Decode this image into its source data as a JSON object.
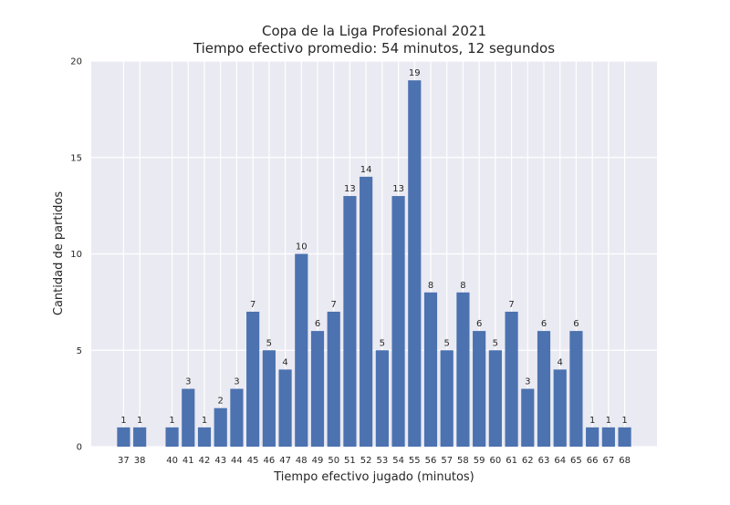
{
  "chart_data": {
    "type": "bar",
    "title": "Copa de la Liga Profesional 2021",
    "subtitle": "Tiempo efectivo promedio: 54 minutos, 12 segundos",
    "xlabel": "Tiempo efectivo jugado (minutos)",
    "ylabel": "Cantidad de partidos",
    "categories": [
      37,
      38,
      40,
      41,
      42,
      43,
      44,
      45,
      46,
      47,
      48,
      49,
      50,
      51,
      52,
      53,
      54,
      55,
      56,
      57,
      58,
      59,
      60,
      61,
      62,
      63,
      64,
      65,
      66,
      67,
      68
    ],
    "values": [
      1,
      1,
      1,
      3,
      1,
      2,
      3,
      7,
      5,
      4,
      10,
      6,
      7,
      13,
      14,
      5,
      13,
      19,
      8,
      5,
      8,
      6,
      5,
      7,
      3,
      6,
      4,
      6,
      1,
      1,
      1
    ],
    "xlim": [
      35,
      70
    ],
    "ylim": [
      0,
      20
    ],
    "yticks": [
      0,
      5,
      10,
      15,
      20
    ],
    "grid": true,
    "bar_color": "#4c72b0",
    "background_color": "#eaeaf2"
  }
}
